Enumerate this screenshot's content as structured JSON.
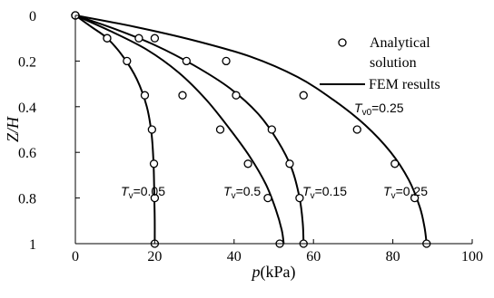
{
  "chart_data": {
    "type": "line",
    "title": "",
    "xlabel": {
      "italic": "p",
      "rest": "(kPa)"
    },
    "ylabel": {
      "italic": "Z/H"
    },
    "xlim": [
      0,
      100
    ],
    "ylim": [
      0,
      1
    ],
    "y_inverted": true,
    "xticks": [
      "0",
      "20",
      "40",
      "60",
      "80",
      "100"
    ],
    "xtick_values": [
      0,
      20,
      40,
      60,
      80,
      100
    ],
    "yticks": [
      "0",
      "0.2",
      "0.4",
      "0.6",
      "0.8",
      "1"
    ],
    "ytick_values": [
      0,
      0.2,
      0.4,
      0.6,
      0.8,
      1
    ],
    "grid": false,
    "legend": {
      "position": "top-right",
      "entries": [
        {
          "marker": "circle-open",
          "label_line1": "Analytical",
          "label_line2": "solution"
        },
        {
          "marker": "line",
          "label": "FEM results"
        }
      ]
    },
    "series": [
      {
        "annotation": {
          "main": "T",
          "sub": "v",
          "rest": "=0.05"
        },
        "analytical": {
          "x": [
            0,
            8,
            13,
            17.5,
            19.3,
            19.8,
            20,
            20
          ],
          "y": [
            0,
            0.1,
            0.2,
            0.35,
            0.5,
            0.65,
            0.8,
            1.0
          ]
        },
        "fem": {
          "x": [
            0,
            4,
            8,
            12,
            15.5,
            18,
            19.2,
            19.7,
            19.9,
            20,
            20
          ],
          "y": [
            0,
            0.05,
            0.1,
            0.18,
            0.28,
            0.4,
            0.52,
            0.65,
            0.8,
            0.9,
            1.0
          ]
        }
      },
      {
        "annotation": {
          "main": "T",
          "sub": "v",
          "rest": "=0.5"
        },
        "analytical": {
          "x": [
            0,
            8,
            20,
            27,
            36.5,
            43.5,
            48.5,
            51.5
          ],
          "y": [
            0,
            0.1,
            0.1,
            0.35,
            0.5,
            0.65,
            0.8,
            1.0
          ]
        },
        "fem": {
          "x": [
            0,
            9,
            18,
            26,
            33,
            39,
            44,
            48,
            50.5,
            52,
            52.5
          ],
          "y": [
            0,
            0.07,
            0.15,
            0.25,
            0.37,
            0.5,
            0.62,
            0.74,
            0.85,
            0.94,
            1.0
          ]
        }
      },
      {
        "annotation": {
          "main": "T",
          "sub": "v",
          "rest": "=0.15"
        },
        "analytical": {
          "x": [
            0,
            16,
            28,
            40.5,
            49.5,
            54,
            56.5,
            57.5
          ],
          "y": [
            0,
            0.1,
            0.2,
            0.35,
            0.5,
            0.65,
            0.8,
            1.0
          ]
        },
        "fem": {
          "x": [
            0,
            10,
            20,
            30,
            39,
            46,
            51,
            54.5,
            56.5,
            57.3,
            57.5
          ],
          "y": [
            0,
            0.06,
            0.13,
            0.22,
            0.32,
            0.43,
            0.55,
            0.67,
            0.8,
            0.91,
            1.0
          ]
        }
      },
      {
        "annotation": {
          "main": "T",
          "sub": "v",
          "rest": "=0.25"
        },
        "analytical": {
          "x": [
            0,
            38,
            57.5,
            71,
            80.5,
            85.5,
            88.5
          ],
          "y": [
            0,
            0.2,
            0.35,
            0.5,
            0.65,
            0.8,
            1.0
          ]
        },
        "fem": {
          "x": [
            0,
            15,
            30,
            44,
            56,
            65,
            73,
            79.5,
            84,
            86.8,
            88,
            88.5
          ],
          "y": [
            0,
            0.05,
            0.11,
            0.18,
            0.27,
            0.37,
            0.48,
            0.6,
            0.72,
            0.84,
            0.93,
            1.0
          ]
        }
      }
    ],
    "extra_annotation": {
      "main": "T",
      "sub": "v0",
      "rest": "=0.25"
    }
  }
}
